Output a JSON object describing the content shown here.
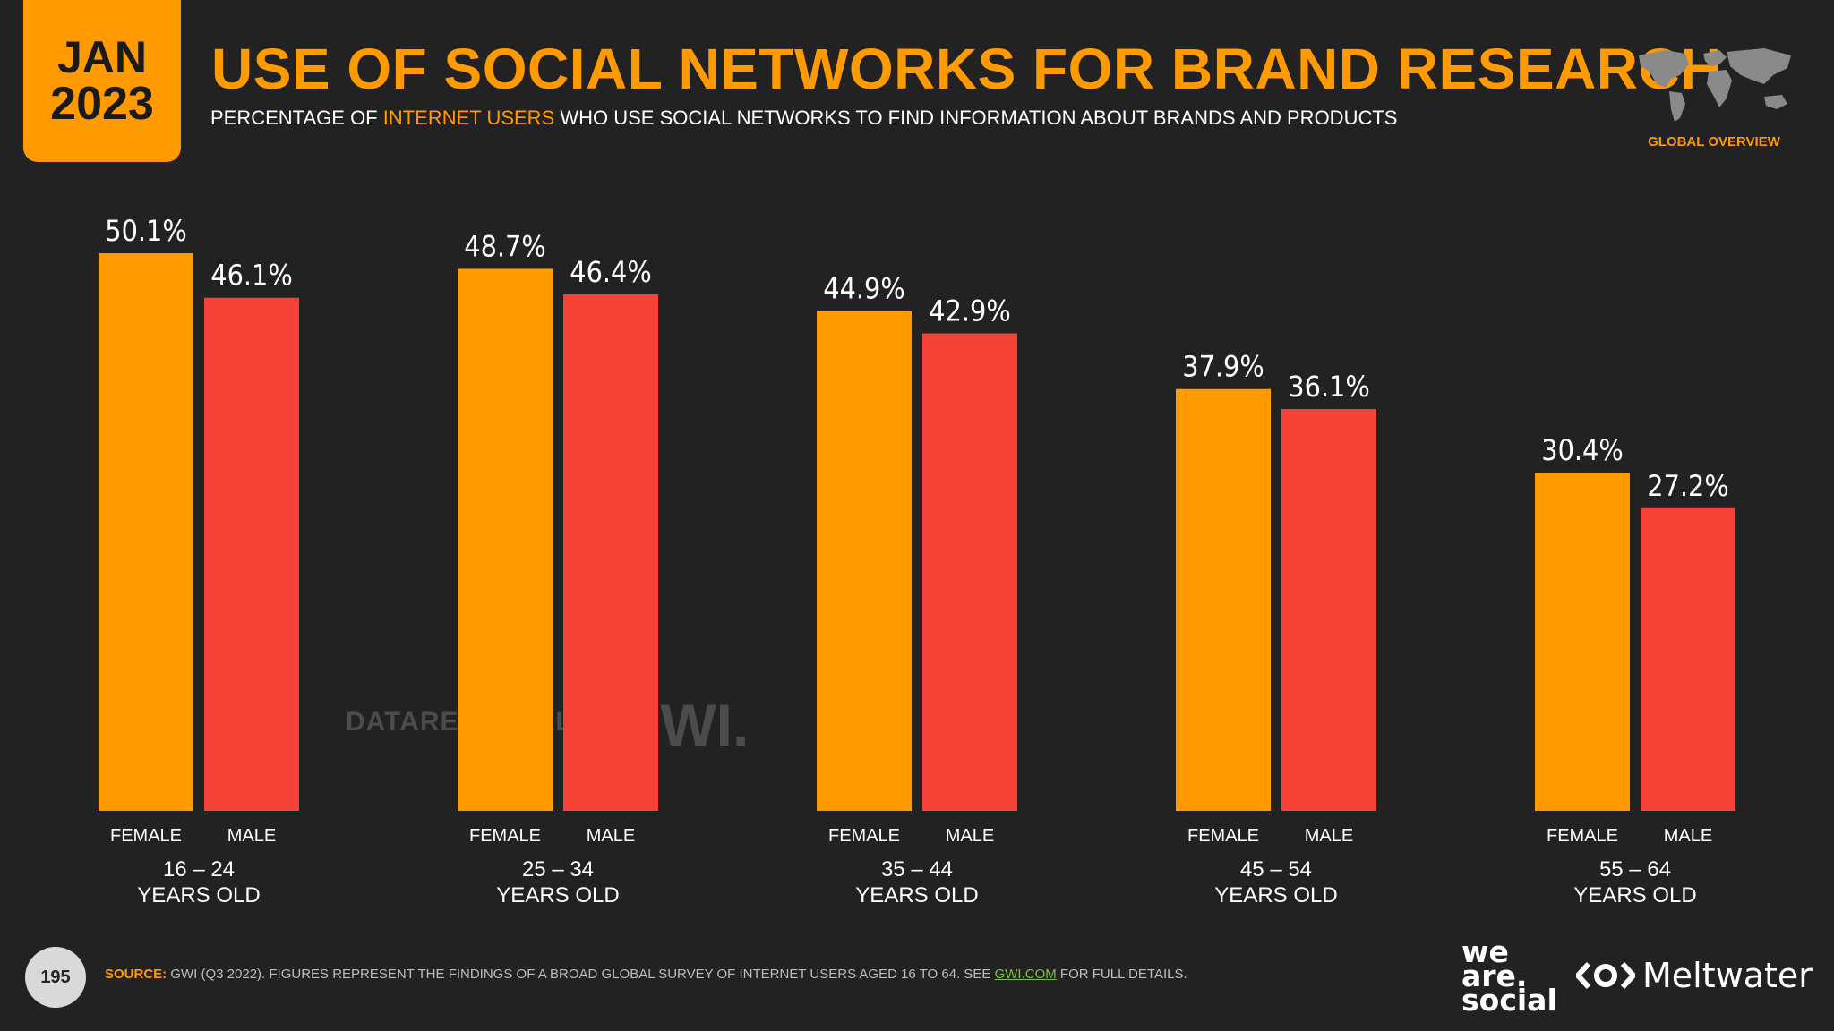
{
  "header": {
    "month": "JAN",
    "year": "2023",
    "title": "USE OF SOCIAL NETWORKS FOR BRAND RESEARCH",
    "subtitle_pre": "PERCENTAGE OF ",
    "subtitle_highlight": "INTERNET USERS",
    "subtitle_post": " WHO USE SOCIAL NETWORKS TO FIND INFORMATION ABOUT BRANDS AND PRODUCTS",
    "region_label": "GLOBAL OVERVIEW"
  },
  "colors": {
    "female": "#ff9a00",
    "male": "#f44336",
    "background": "#222222",
    "accent": "#ff9a00"
  },
  "chart_data": {
    "type": "bar",
    "title": "USE OF SOCIAL NETWORKS FOR BRAND RESEARCH",
    "categories": [
      "16 – 24",
      "25 – 34",
      "35 – 44",
      "45 – 54",
      "55 – 64"
    ],
    "category_sublabel": "YEARS OLD",
    "series": [
      {
        "name": "FEMALE",
        "values": [
          50.1,
          48.7,
          44.9,
          37.9,
          30.4
        ]
      },
      {
        "name": "MALE",
        "values": [
          46.1,
          46.4,
          42.9,
          36.1,
          27.2
        ]
      }
    ],
    "value_suffix": "%",
    "ylim": [
      0,
      50.1
    ],
    "grid": false,
    "xlabel": "",
    "ylabel": ""
  },
  "watermark": {
    "left": "DATAREPORTAL",
    "right": "GWI."
  },
  "footer": {
    "page_number": "195",
    "source_label": "SOURCE:",
    "source_text": " GWI (Q3 2022). FIGURES REPRESENT THE FINDINGS OF A BROAD GLOBAL SURVEY OF INTERNET USERS AGED 16 TO 64. SEE ",
    "source_link": "GWI.COM",
    "source_tail": " FOR FULL DETAILS.",
    "brand1_line1": "we",
    "brand1_line2": "are.",
    "brand1_line3": "social",
    "brand2": "Meltwater"
  }
}
